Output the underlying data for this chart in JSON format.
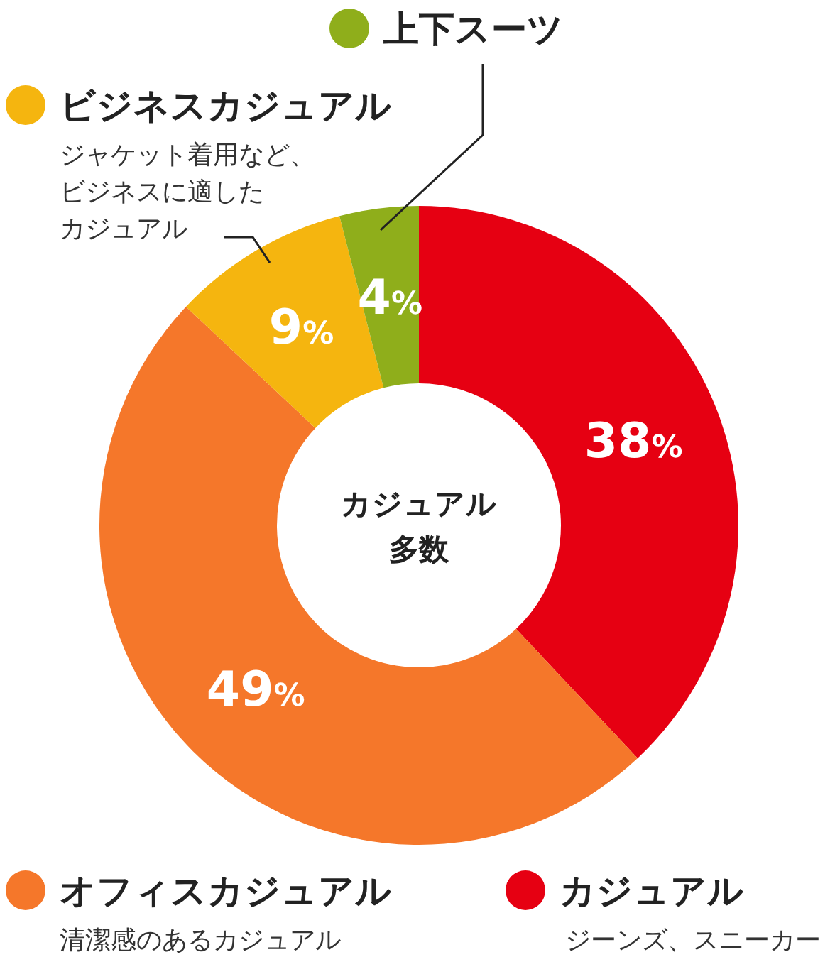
{
  "chart_data": {
    "type": "donut",
    "categories": [
      "カジュアル",
      "オフィスカジュアル",
      "ビジネスカジュアル",
      "上下スーツ"
    ],
    "values": [
      38,
      49,
      9,
      4
    ],
    "colors": [
      "#e60012",
      "#f5772a",
      "#f5b50f",
      "#8fae1b"
    ],
    "value_labels": [
      "38%",
      "49%",
      "9%",
      "4%"
    ],
    "legend": "top left",
    "annotations": [
      "ジーンズ、スニーカー",
      "清潔感のあるカジュアル",
      "ジャケット着用など、",
      "ビジネスに適した",
      "カジュアル",
      "カジュアル",
      "多数"
    ]
  }
}
